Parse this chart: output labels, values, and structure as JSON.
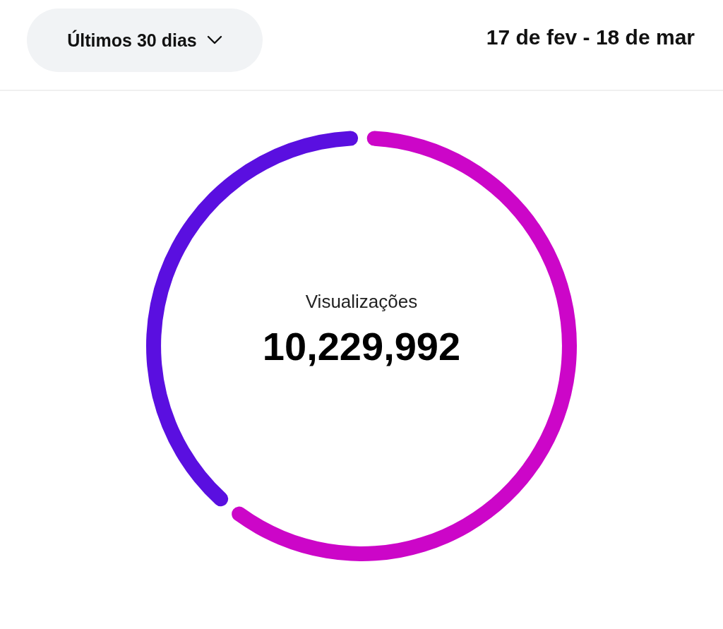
{
  "chart_data": {
    "type": "donut",
    "categories": [
      null,
      null
    ],
    "values": [
      61,
      39
    ],
    "colors": [
      "#cc06c8",
      "#5a0fe0"
    ],
    "legend": false,
    "annotations": [
      "Últimos 30 dias",
      "17 de fev - 18 de mar",
      "Visualizações",
      "10,229,992"
    ]
  }
}
